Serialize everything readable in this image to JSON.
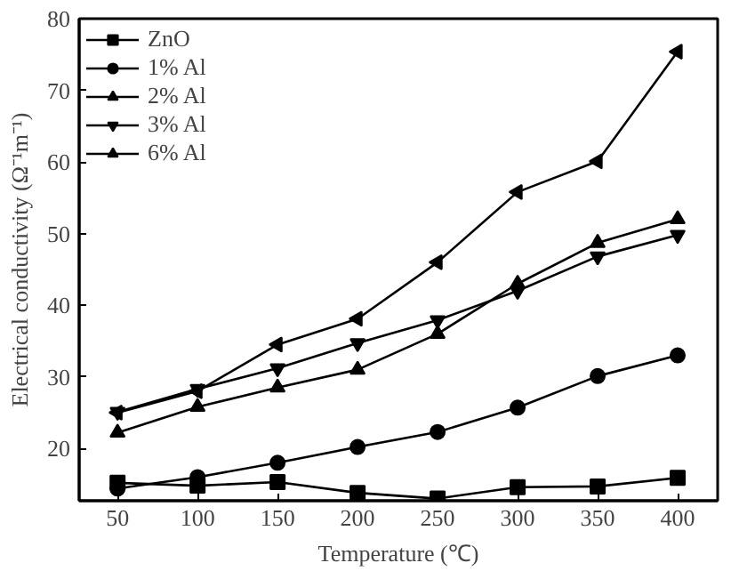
{
  "chart_data": {
    "type": "line",
    "xlabel": "Temperature (℃)",
    "ylabel": "Electrical conductivity (Ω⁻¹m⁻¹)",
    "x": [
      50,
      100,
      150,
      200,
      250,
      300,
      350,
      400
    ],
    "xlim": [
      26,
      425
    ],
    "ylim": [
      12.7,
      80
    ],
    "xticks": [
      50,
      100,
      150,
      200,
      250,
      300,
      350,
      400
    ],
    "yticks": [
      20,
      30,
      40,
      50,
      60,
      70,
      80
    ],
    "grid": false,
    "legend": "top left",
    "line_style": "solid",
    "series": [
      {
        "name": "ZnO",
        "color": "#000000",
        "marker": "square",
        "values": [
          15.2,
          14.8,
          15.3,
          13.8,
          13.0,
          14.6,
          14.7,
          15.9
        ]
      },
      {
        "name": "1% Al",
        "color": "#000000",
        "marker": "circle",
        "values": [
          14.4,
          16.0,
          18.0,
          20.2,
          22.3,
          25.7,
          30.1,
          33.0
        ]
      },
      {
        "name": "2% Al",
        "color": "#000000",
        "marker": "triangle",
        "values": [
          22.2,
          25.8,
          28.5,
          31.0,
          36.0,
          43.0,
          48.7,
          52.0
        ]
      },
      {
        "name": "3% Al",
        "color": "#000000",
        "marker": "triangle_down",
        "values": [
          25.1,
          28.3,
          31.2,
          34.7,
          37.9,
          42.0,
          46.8,
          49.8
        ]
      },
      {
        "name": "6% Al",
        "color": "#000000",
        "marker": "triangle_left",
        "values": [
          25.0,
          28.0,
          34.5,
          38.1,
          46.0,
          55.8,
          60.1,
          75.4
        ]
      }
    ]
  }
}
